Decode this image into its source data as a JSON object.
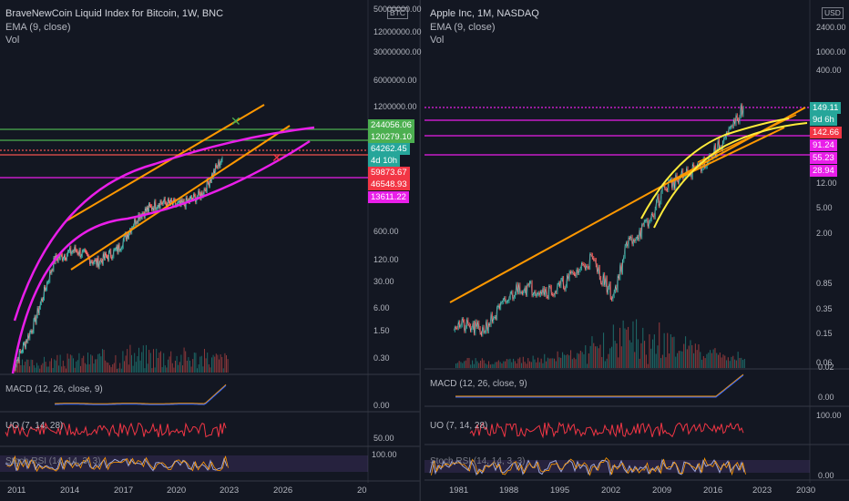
{
  "left": {
    "title": "BraveNewCoin Liquid Index for Bitcoin, 1W, BNC",
    "ema": "EMA (9, close)",
    "vol": "Vol",
    "currency": "BTC",
    "axis": [
      "50000000.00",
      "12000000.00",
      "30000000.00",
      "6000000.00",
      "1200000.00",
      "600.00",
      "120.00",
      "30.00",
      "6.00",
      "1.50",
      "0.30"
    ],
    "tags": [
      {
        "text": "244056.06",
        "color": "#4caf50"
      },
      {
        "text": "120279.10",
        "color": "#4caf50"
      },
      {
        "text": "64262.45",
        "color": "#26a69a"
      },
      {
        "text": "4d 10h",
        "color": "#26a69a"
      },
      {
        "text": "59873.67",
        "color": "#f23645"
      },
      {
        "text": "46548.93",
        "color": "#f23645"
      },
      {
        "text": "13611.22",
        "color": "#e91ee9"
      }
    ],
    "macd": "MACD (12, 26, close, 9)",
    "macd_axis": "0.00",
    "uo": "UO (7, 14, 28)",
    "uo_axis": "50.00",
    "stoch": "Stoch RSI (14, 14, 3, 3)",
    "stoch_axis": "100.00",
    "years": [
      "2011",
      "2014",
      "2017",
      "2020",
      "2023",
      "2026",
      "20"
    ]
  },
  "right": {
    "title": "Apple Inc, 1M, NASDAQ",
    "ema": "EMA (9, close)",
    "vol": "Vol",
    "currency": "USD",
    "axis": [
      "2400.00",
      "1000.00",
      "400.00",
      "12.00",
      "5.00",
      "2.00",
      "0.85",
      "0.35",
      "0.15",
      "0.06",
      "0.02"
    ],
    "tags": [
      {
        "text": "149.11",
        "color": "#26a69a"
      },
      {
        "text": "9d 6h",
        "color": "#26a69a"
      },
      {
        "text": "142.66",
        "color": "#f23645"
      },
      {
        "text": "91.24",
        "color": "#e91ee9"
      },
      {
        "text": "55.23",
        "color": "#e91ee9"
      },
      {
        "text": "28.94",
        "color": "#e91ee9"
      }
    ],
    "macd": "MACD (12, 26, close, 9)",
    "macd_axis": "0.00",
    "uo": "UO (7, 14, 28)",
    "uo_axis": "100.00",
    "stoch": "Stoch RSI (14, 14, 3, 3)",
    "stoch_axis": "0.00",
    "years": [
      "1981",
      "1988",
      "1995",
      "2002",
      "2009",
      "2016",
      "2023",
      "2030"
    ]
  },
  "chart_data": [
    {
      "type": "line",
      "title": "BraveNewCoin Liquid Index for Bitcoin, 1W, BNC",
      "scale": "log",
      "x": [
        2011,
        2012,
        2013,
        2014,
        2015,
        2016,
        2017,
        2018,
        2019,
        2020,
        2021
      ],
      "series": [
        {
          "values": [
            1,
            10,
            300,
            500,
            250,
            500,
            3000,
            6000,
            5000,
            9000,
            60000
          ]
        }
      ],
      "price_levels": [
        244056.06,
        120279.1,
        64262.45,
        59873.67,
        46548.93,
        13611.22
      ],
      "colors": {
        "bull": "#26a69a",
        "bear": "#ef5350",
        "trend": "#ff9800",
        "curve": "#e91ee9"
      }
    },
    {
      "type": "line",
      "title": "Apple Inc, 1M, NASDAQ",
      "scale": "log",
      "x": [
        1981,
        1985,
        1990,
        1995,
        2000,
        2003,
        2005,
        2008,
        2010,
        2013,
        2016,
        2019,
        2021
      ],
      "series": [
        {
          "values": [
            0.1,
            0.08,
            0.35,
            0.3,
            0.9,
            0.25,
            1.5,
            3,
            10,
            15,
            25,
            60,
            149.11
          ]
        }
      ],
      "price_levels": [
        149.11,
        142.66,
        91.24,
        55.23,
        28.94
      ],
      "colors": {
        "bull": "#26a69a",
        "bear": "#ef5350",
        "trend": "#ff9800",
        "curve": "#ffeb3b"
      }
    }
  ]
}
